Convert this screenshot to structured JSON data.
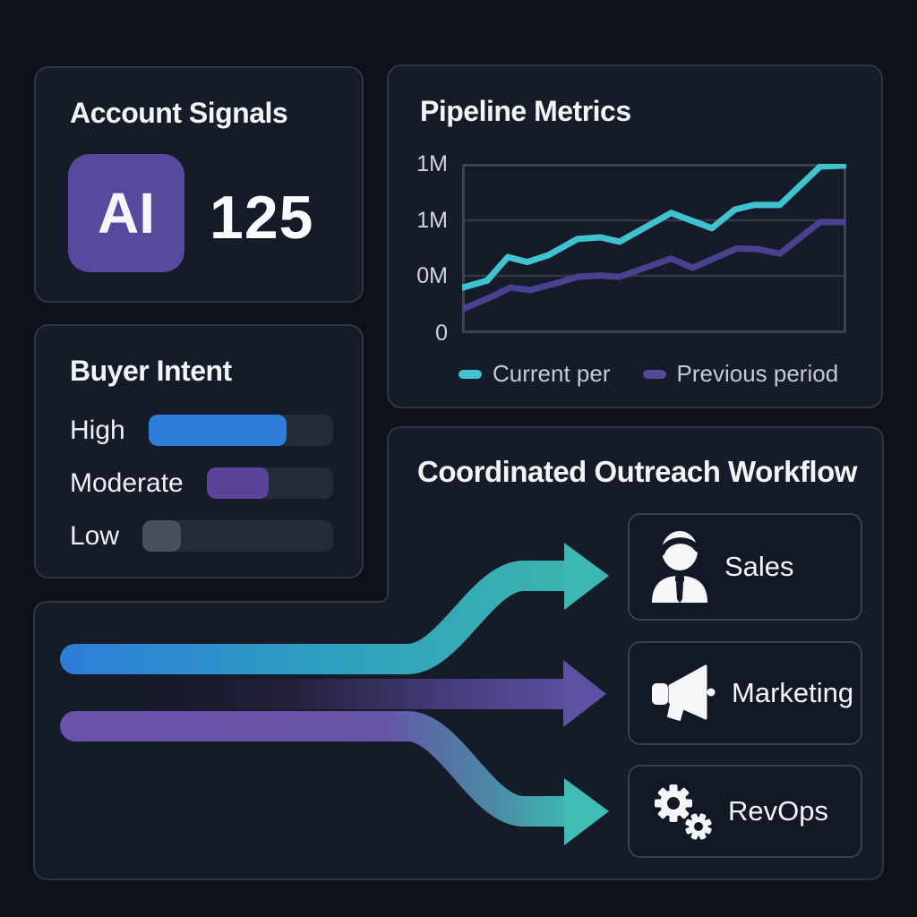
{
  "account_signals": {
    "title": "Account Signals",
    "badge": "AI",
    "badge_color": "#564a9e",
    "value": "125"
  },
  "pipeline_metrics": {
    "title": "Pipeline Metrics",
    "y_ticks": [
      "1M",
      "1M",
      "0M",
      "0"
    ],
    "legend": [
      {
        "label": "Current per",
        "color": "#3fc3ce"
      },
      {
        "label": "Previous period",
        "color": "#524896"
      }
    ],
    "chart_data": {
      "type": "line",
      "title": "Pipeline Metrics",
      "xlabel": "",
      "ylabel": "",
      "y_axis_labels_top_to_bottom": [
        "1M",
        "1M",
        "0M",
        "0"
      ],
      "grid": "horizontal",
      "legend_position": "bottom",
      "series": [
        {
          "name": "Current per",
          "color": "#3fc3ce",
          "points": [
            [
              0.002,
              0.27
            ],
            [
              0.065,
              0.31
            ],
            [
              0.119,
              0.45
            ],
            [
              0.17,
              0.42
            ],
            [
              0.224,
              0.46
            ],
            [
              0.3,
              0.556
            ],
            [
              0.36,
              0.566
            ],
            [
              0.41,
              0.54
            ],
            [
              0.544,
              0.71
            ],
            [
              0.65,
              0.62
            ],
            [
              0.71,
              0.73
            ],
            [
              0.76,
              0.757
            ],
            [
              0.827,
              0.757
            ],
            [
              0.932,
              0.984
            ],
            [
              1.0,
              0.99
            ]
          ]
        },
        {
          "name": "Previous period",
          "color": "#4a4190",
          "points": [
            [
              0.002,
              0.143
            ],
            [
              0.084,
              0.222
            ],
            [
              0.126,
              0.27
            ],
            [
              0.177,
              0.254
            ],
            [
              0.254,
              0.3
            ],
            [
              0.3,
              0.333
            ],
            [
              0.36,
              0.34
            ],
            [
              0.41,
              0.333
            ],
            [
              0.544,
              0.44
            ],
            [
              0.6,
              0.386
            ],
            [
              0.715,
              0.5
            ],
            [
              0.768,
              0.497
            ],
            [
              0.827,
              0.47
            ],
            [
              0.932,
              0.656
            ],
            [
              1.0,
              0.656
            ]
          ]
        }
      ]
    }
  },
  "buyer_intent": {
    "title": "Buyer Intent",
    "rows": [
      {
        "label": "High",
        "fill_pct": 75,
        "color": "#2d7ed8"
      },
      {
        "label": "Moderate",
        "fill_pct": 49,
        "color": "#5b4399"
      },
      {
        "label": "Low",
        "fill_pct": 20,
        "color": "#4a505a"
      }
    ]
  },
  "workflow": {
    "title": "Coordinated Outreach Workflow",
    "targets": [
      {
        "label": "Sales",
        "icon": "person-icon"
      },
      {
        "label": "Marketing",
        "icon": "megaphone-icon"
      },
      {
        "label": "RevOps",
        "icon": "gears-icon"
      }
    ],
    "flow_colors": {
      "sales_flow_start": "#2d7ed8",
      "sales_flow_end": "#3cb7b1",
      "marketing_flow_end": "#5d51a3",
      "revops_flow_start": "#6b51ab",
      "revops_flow_end": "#40bcb5"
    }
  },
  "colors": {
    "page_bg": "#0d1119",
    "card_bg": "#151b28",
    "card_border": "#2f3542",
    "track_bg": "#252b36",
    "grid_line": "#323846",
    "axis_line": "#3c4250"
  }
}
